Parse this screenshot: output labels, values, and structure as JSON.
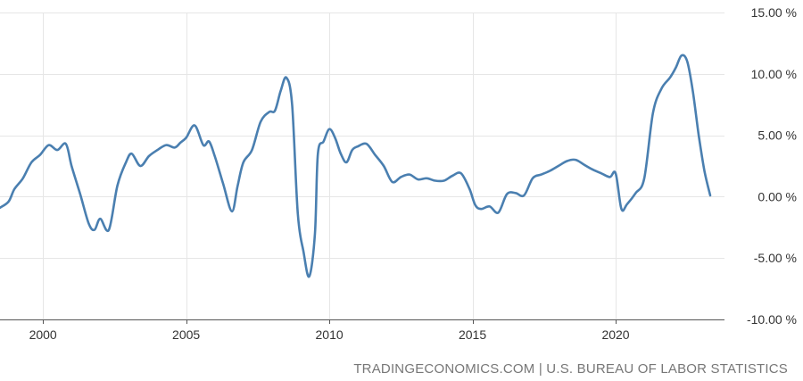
{
  "source_text": "TRADINGECONOMICS.COM | U.S. BUREAU OF LABOR STATISTICS",
  "colors": {
    "line": "#4a7fb0",
    "grid": "#e6e6e6",
    "axis": "#555555",
    "text": "#333333",
    "source": "#777777"
  },
  "chart_data": {
    "type": "line",
    "title": "",
    "xlabel": "",
    "ylabel": "",
    "xlim": [
      1998.5,
      2023.8
    ],
    "ylim": [
      -10,
      15
    ],
    "x_ticks": [
      2000,
      2005,
      2010,
      2015,
      2020
    ],
    "x_tick_labels": [
      "2000",
      "2005",
      "2010",
      "2015",
      "2020"
    ],
    "y_ticks": [
      15,
      10,
      5,
      0,
      -5,
      -10
    ],
    "y_tick_labels": [
      "15.00 %",
      "10.00 %",
      "5.00 %",
      "0.00 %",
      "-5.00 %",
      "-10.00 %"
    ],
    "grid": true,
    "legend": "none",
    "series": [
      {
        "x": [
          1998.5,
          1998.8,
          1999.0,
          1999.3,
          1999.6,
          1999.9,
          2000.2,
          2000.5,
          2000.8,
          2001.0,
          2001.3,
          2001.6,
          2001.8,
          2002.0,
          2002.3,
          2002.6,
          2002.9,
          2003.1,
          2003.4,
          2003.7,
          2004.0,
          2004.3,
          2004.6,
          2004.8,
          2005.0,
          2005.3,
          2005.6,
          2005.8,
          2006.0,
          2006.3,
          2006.6,
          2006.8,
          2007.0,
          2007.3,
          2007.6,
          2007.9,
          2008.1,
          2008.3,
          2008.5,
          2008.7,
          2008.9,
          2009.1,
          2009.3,
          2009.5,
          2009.6,
          2009.8,
          2010.0,
          2010.2,
          2010.4,
          2010.6,
          2010.8,
          2011.0,
          2011.3,
          2011.6,
          2011.9,
          2012.2,
          2012.5,
          2012.8,
          2013.1,
          2013.4,
          2013.7,
          2014.0,
          2014.3,
          2014.6,
          2014.9,
          2015.1,
          2015.3,
          2015.6,
          2015.9,
          2016.2,
          2016.5,
          2016.8,
          2017.1,
          2017.4,
          2017.7,
          2018.0,
          2018.3,
          2018.6,
          2018.9,
          2019.2,
          2019.5,
          2019.8,
          2020.0,
          2020.2,
          2020.4,
          2020.7,
          2021.0,
          2021.3,
          2021.6,
          2021.9,
          2022.1,
          2022.3,
          2022.5,
          2022.7,
          2022.9,
          2023.1,
          2023.3
        ],
        "values": [
          -0.9,
          -0.4,
          0.6,
          1.5,
          2.8,
          3.4,
          4.2,
          3.8,
          4.3,
          2.5,
          0.2,
          -2.2,
          -2.7,
          -1.8,
          -2.7,
          0.9,
          2.8,
          3.5,
          2.5,
          3.3,
          3.8,
          4.2,
          4.0,
          4.4,
          4.8,
          5.8,
          4.2,
          4.5,
          3.3,
          1.0,
          -1.2,
          0.9,
          2.8,
          3.8,
          6.1,
          6.9,
          7.0,
          8.6,
          9.7,
          7.5,
          -1.4,
          -4.5,
          -6.5,
          -3.0,
          3.5,
          4.5,
          5.5,
          4.8,
          3.5,
          2.8,
          3.8,
          4.1,
          4.3,
          3.4,
          2.5,
          1.2,
          1.6,
          1.8,
          1.4,
          1.5,
          1.3,
          1.3,
          1.7,
          1.9,
          0.6,
          -0.7,
          -1.0,
          -0.8,
          -1.3,
          0.2,
          0.3,
          0.1,
          1.5,
          1.8,
          2.1,
          2.5,
          2.9,
          3.0,
          2.6,
          2.2,
          1.9,
          1.6,
          1.9,
          -1.0,
          -0.6,
          0.3,
          1.5,
          6.8,
          8.8,
          9.7,
          10.5,
          11.5,
          11.0,
          8.5,
          5.0,
          2.1,
          0.1
        ]
      }
    ]
  }
}
